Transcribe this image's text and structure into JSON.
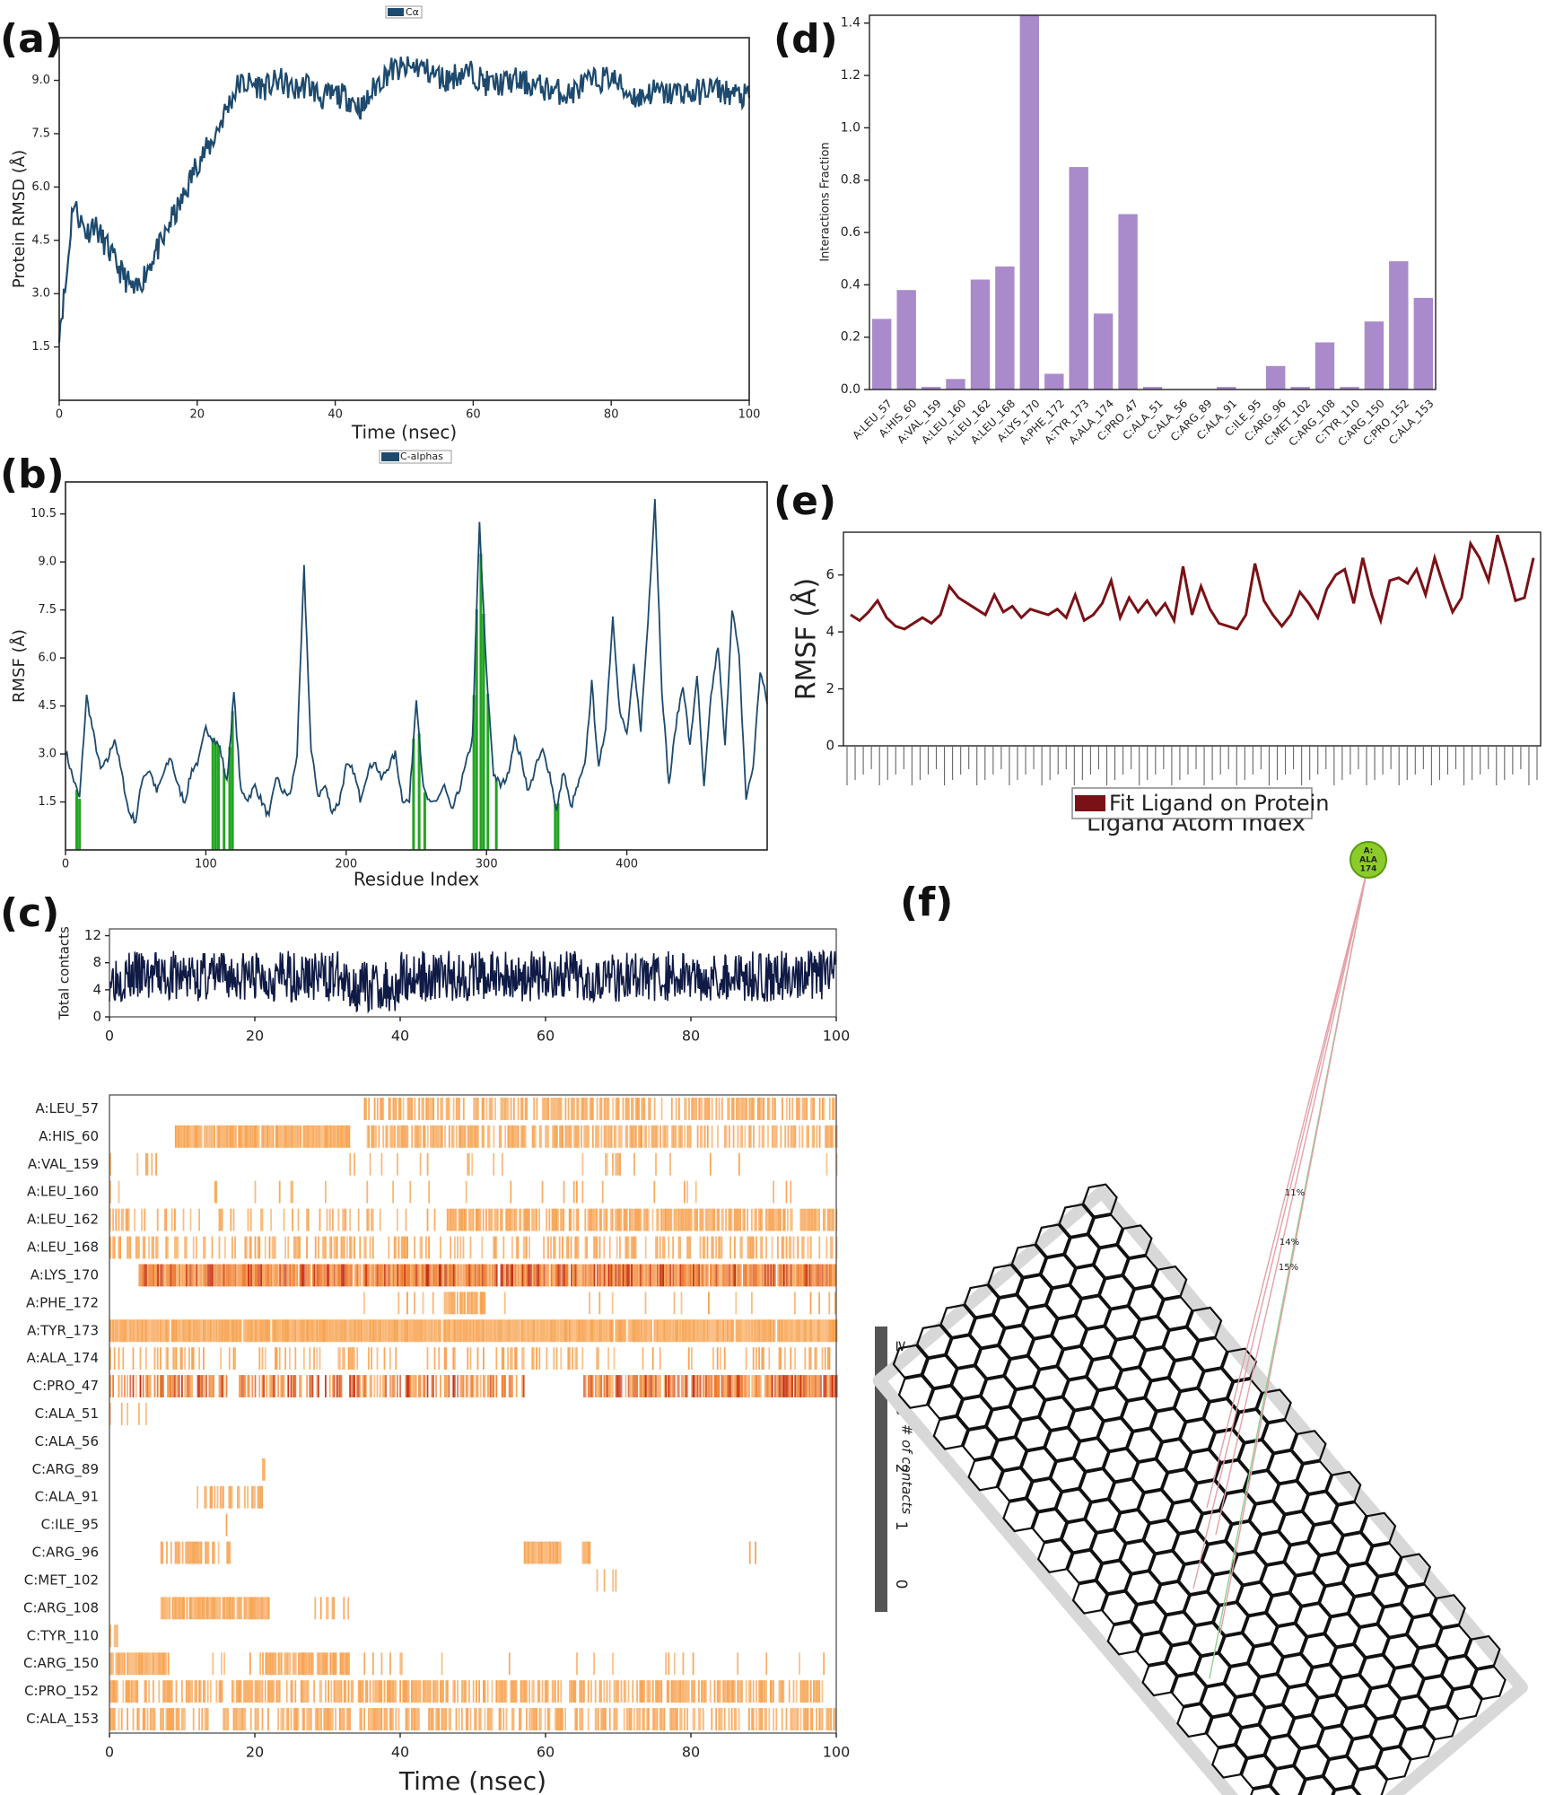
{
  "panels": {
    "a": {
      "label": "(a)"
    },
    "b": {
      "label": "(b)"
    },
    "c": {
      "label": "(c)"
    },
    "d": {
      "label": "(d)"
    },
    "e": {
      "label": "(e)"
    },
    "f": {
      "label": "(f)"
    }
  },
  "chart_data": [
    {
      "id": "a",
      "type": "line",
      "legend": "Cα",
      "xlabel": "Time (nsec)",
      "ylabel": "Protein RMSD (Å)",
      "xlim": [
        0,
        100
      ],
      "ylim": [
        0,
        10.2
      ],
      "xticks": [
        0,
        20,
        40,
        60,
        80,
        100
      ],
      "yticks": [
        1.5,
        3.0,
        4.5,
        6.0,
        7.5,
        9.0
      ],
      "color": "#1d4a6e",
      "x": [
        0,
        1,
        2,
        3,
        4,
        5,
        6,
        7,
        8,
        9,
        10,
        11,
        12,
        13,
        14,
        15,
        16,
        17,
        18,
        19,
        20,
        22,
        24,
        26,
        28,
        30,
        32,
        34,
        36,
        38,
        40,
        42,
        44,
        46,
        48,
        50,
        52,
        54,
        56,
        58,
        60,
        62,
        64,
        66,
        68,
        70,
        72,
        74,
        76,
        78,
        80,
        82,
        84,
        86,
        88,
        90,
        92,
        94,
        96,
        98,
        100
      ],
      "series": [
        {
          "values": [
            2.0,
            3.3,
            5.6,
            5.1,
            4.7,
            5.0,
            4.6,
            4.3,
            3.9,
            3.6,
            3.3,
            3.0,
            3.4,
            3.8,
            4.2,
            4.4,
            5.0,
            5.3,
            5.7,
            6.2,
            6.7,
            7.2,
            8.1,
            8.9,
            8.9,
            8.8,
            9.0,
            8.7,
            8.9,
            8.5,
            8.6,
            8.5,
            8.2,
            8.9,
            9.3,
            9.3,
            9.4,
            9.2,
            9.0,
            9.2,
            9.2,
            8.9,
            8.9,
            9.0,
            8.9,
            8.8,
            8.7,
            8.6,
            8.9,
            9.0,
            9.1,
            8.7,
            8.5,
            8.7,
            8.6,
            8.7,
            8.6,
            8.8,
            8.7,
            8.6,
            8.5
          ]
        }
      ]
    },
    {
      "id": "b",
      "type": "line",
      "legend": "C-alphas",
      "xlabel": "Residue Index",
      "ylabel": "RMSF (Å)",
      "xlim": [
        0,
        500
      ],
      "ylim": [
        0,
        11.5
      ],
      "xticks": [
        0,
        100,
        200,
        300,
        400
      ],
      "yticks": [
        1.5,
        3.0,
        4.5,
        6.0,
        7.5,
        9.0,
        10.5
      ],
      "color": "#1d4a6e",
      "highlight_color": "#22a522",
      "contact_residues": [
        8,
        10,
        105,
        107,
        109,
        113,
        117,
        119,
        248,
        252,
        256,
        291,
        293,
        296,
        298,
        301,
        307,
        349,
        351
      ],
      "x": [
        0,
        5,
        10,
        15,
        20,
        25,
        30,
        35,
        40,
        45,
        50,
        55,
        60,
        65,
        70,
        75,
        80,
        85,
        90,
        95,
        100,
        105,
        110,
        115,
        120,
        125,
        130,
        135,
        140,
        145,
        150,
        155,
        160,
        165,
        170,
        175,
        180,
        185,
        190,
        195,
        200,
        205,
        210,
        215,
        220,
        225,
        230,
        235,
        240,
        245,
        250,
        255,
        260,
        265,
        270,
        275,
        280,
        285,
        290,
        295,
        300,
        305,
        310,
        315,
        320,
        325,
        330,
        335,
        340,
        345,
        350,
        355,
        360,
        365,
        370,
        375,
        380,
        385,
        390,
        395,
        400,
        405,
        410,
        415,
        420,
        425,
        430,
        435,
        440,
        445,
        450,
        455,
        460,
        465,
        470,
        475,
        480,
        485,
        490,
        495,
        500
      ],
      "series": [
        {
          "values": [
            3.1,
            2.3,
            1.6,
            4.8,
            3.6,
            2.5,
            2.8,
            3.5,
            2.4,
            1.2,
            0.9,
            2.3,
            2.5,
            1.8,
            2.4,
            2.9,
            2.0,
            1.5,
            2.5,
            2.8,
            3.8,
            3.5,
            3.2,
            2.1,
            4.9,
            1.8,
            1.6,
            2.0,
            1.5,
            1.0,
            2.3,
            1.8,
            1.7,
            3.0,
            8.8,
            3.1,
            1.7,
            2.0,
            1.2,
            1.5,
            2.6,
            2.5,
            1.6,
            2.4,
            2.8,
            2.2,
            2.6,
            3.0,
            1.6,
            1.5,
            4.8,
            1.9,
            1.4,
            1.6,
            2.0,
            1.2,
            1.8,
            2.6,
            3.5,
            10.2,
            5.5,
            2.4,
            2.0,
            2.3,
            3.5,
            2.8,
            1.8,
            2.6,
            3.1,
            2.4,
            1.2,
            2.5,
            1.3,
            2.0,
            2.6,
            5.2,
            2.5,
            3.9,
            7.3,
            4.3,
            3.6,
            5.7,
            3.8,
            7.1,
            11.0,
            5.0,
            2.0,
            3.9,
            5.2,
            3.2,
            5.5,
            1.9,
            4.8,
            6.4,
            3.2,
            7.6,
            6.0,
            1.6,
            2.6,
            5.6,
            4.6
          ]
        }
      ]
    },
    {
      "id": "c-top",
      "type": "line",
      "ylabel": "Total contacts",
      "xlim": [
        0,
        100
      ],
      "ylim": [
        0,
        13
      ],
      "xticks": [
        0,
        20,
        40,
        60,
        80,
        100
      ],
      "yticks": [
        0,
        4,
        8,
        12
      ],
      "color": "#0f1a45",
      "series": [
        {
          "name": "",
          "values": []
        }
      ]
    },
    {
      "id": "c-heatmap",
      "type": "heatmap",
      "xlabel": "Time (nsec)",
      "xlim": [
        0,
        100
      ],
      "xticks": [
        0,
        20,
        40,
        60,
        80,
        100
      ],
      "colorbar_title": "# of contacts",
      "colorbar_ticks": [
        "0",
        "1",
        "2",
        "3",
        "≥ 4"
      ],
      "colors": {
        "light": "#f7a24f",
        "mid": "#ee7a2b",
        "dark": "#c42a07"
      },
      "rows": [
        {
          "label": "A:LEU_57",
          "segments": [
            [
              0,
              35,
              0.0
            ],
            [
              35,
              100,
              0.55
            ]
          ]
        },
        {
          "label": "A:HIS_60",
          "segments": [
            [
              9,
              33,
              0.95
            ],
            [
              35,
              100,
              0.55
            ]
          ]
        },
        {
          "label": "A:VAL_159",
          "segments": [
            [
              0,
              10,
              0.12
            ],
            [
              33,
              100,
              0.08
            ]
          ]
        },
        {
          "label": "A:LEU_160",
          "segments": [
            [
              0,
              100,
              0.05
            ]
          ]
        },
        {
          "label": "A:LEU_162",
          "segments": [
            [
              0,
              46,
              0.25
            ],
            [
              46,
              100,
              0.75
            ]
          ]
        },
        {
          "label": "A:LEU_168",
          "segments": [
            [
              0,
              100,
              0.4
            ]
          ]
        },
        {
          "label": "A:LYS_170",
          "segments": [
            [
              4,
              100,
              0.95,
              "mid"
            ]
          ]
        },
        {
          "label": "A:PHE_172",
          "segments": [
            [
              46,
              52,
              0.8
            ],
            [
              30,
              100,
              0.08
            ]
          ]
        },
        {
          "label": "A:TYR_173",
          "segments": [
            [
              0,
              100,
              0.97
            ]
          ]
        },
        {
          "label": "A:ALA_174",
          "segments": [
            [
              0,
              100,
              0.22
            ]
          ]
        },
        {
          "label": "C:PRO_47",
          "segments": [
            [
              0,
              57,
              0.6,
              "mid"
            ],
            [
              65,
              100,
              0.85,
              "mid"
            ]
          ]
        },
        {
          "label": "C:ALA_51",
          "segments": [
            [
              0,
              5,
              0.25
            ]
          ]
        },
        {
          "label": "C:ALA_56",
          "segments": []
        },
        {
          "label": "C:ARG_89",
          "segments": [
            [
              21,
              21.5,
              0.5
            ]
          ]
        },
        {
          "label": "C:ALA_91",
          "segments": [
            [
              12,
              22,
              0.35
            ]
          ]
        },
        {
          "label": "C:ILE_95",
          "segments": [
            [
              16,
              17,
              0.3
            ]
          ]
        },
        {
          "label": "C:ARG_96",
          "segments": [
            [
              7,
              17,
              0.55
            ],
            [
              57,
              62,
              0.9
            ],
            [
              65,
              66,
              0.9
            ],
            [
              88,
              89,
              0.5
            ]
          ]
        },
        {
          "label": "C:MET_102",
          "segments": [
            [
              67,
              70,
              0.2
            ]
          ]
        },
        {
          "label": "C:ARG_108",
          "segments": [
            [
              7,
              22,
              0.9
            ],
            [
              28,
              33,
              0.35
            ]
          ]
        },
        {
          "label": "C:TYR_110",
          "segments": [
            [
              0,
              1,
              0.5
            ]
          ]
        },
        {
          "label": "C:ARG_150",
          "segments": [
            [
              0,
              8,
              0.9
            ],
            [
              8,
              28,
              0.15
            ],
            [
              21,
              33,
              0.8
            ],
            [
              33,
              100,
              0.06
            ]
          ]
        },
        {
          "label": "C:PRO_152",
          "segments": [
            [
              0,
              98,
              0.6
            ]
          ]
        },
        {
          "label": "C:ALA_153",
          "segments": [
            [
              0,
              100,
              0.55
            ]
          ]
        }
      ]
    },
    {
      "id": "d",
      "type": "bar",
      "ylabel": "Interactions Fraction",
      "ylim": [
        0,
        1.43
      ],
      "yticks": [
        0.0,
        0.2,
        0.4,
        0.6,
        0.8,
        1.0,
        1.2,
        1.4
      ],
      "color": "#a98acb",
      "categories": [
        "A:LEU_57",
        "A:HIS_60",
        "A:VAL_159",
        "A:LEU_160",
        "A:LEU_162",
        "A:LEU_168",
        "A:LYS_170",
        "A:PHE_172",
        "A:TYR_173",
        "A:ALA_174",
        "C:PRO_47",
        "C:ALA_51",
        "C:ALA_56",
        "C:ARG_89",
        "C:ALA_91",
        "C:ILE_95",
        "C:ARG_96",
        "C:MET_102",
        "C:ARG_108",
        "C:TYR_110",
        "C:ARG_150",
        "C:PRO_152",
        "C:ALA_153"
      ],
      "values": [
        0.27,
        0.38,
        0.01,
        0.04,
        0.42,
        0.47,
        1.43,
        0.06,
        0.85,
        0.29,
        0.67,
        0.01,
        0.0,
        0.0,
        0.01,
        0.0,
        0.09,
        0.01,
        0.18,
        0.01,
        0.26,
        0.49,
        0.35
      ]
    },
    {
      "id": "e",
      "type": "line",
      "ylabel": "RMSF (Å)",
      "xlabel": "Ligand Atom Index",
      "legend": "Fit Ligand on Protein",
      "ylim": [
        0,
        7.5
      ],
      "yticks": [
        0,
        2,
        4,
        6
      ],
      "color": "#7a1116",
      "series": [
        {
          "values": [
            4.6,
            4.4,
            4.7,
            5.1,
            4.5,
            4.2,
            4.1,
            4.3,
            4.5,
            4.3,
            4.6,
            5.6,
            5.2,
            5.0,
            4.8,
            4.6,
            5.3,
            4.7,
            4.9,
            4.5,
            4.8,
            4.7,
            4.6,
            4.8,
            4.5,
            5.3,
            4.4,
            4.6,
            5.0,
            5.8,
            4.5,
            5.2,
            4.7,
            5.1,
            4.6,
            5.0,
            4.4,
            6.3,
            4.6,
            5.6,
            4.8,
            4.3,
            4.2,
            4.1,
            4.6,
            6.4,
            5.1,
            4.6,
            4.2,
            4.6,
            5.4,
            5.0,
            4.5,
            5.5,
            6.0,
            6.2,
            5.0,
            6.6,
            5.3,
            4.4,
            5.8,
            5.9,
            5.7,
            6.2,
            5.3,
            6.6,
            5.6,
            4.7,
            5.2,
            7.1,
            6.6,
            5.8,
            7.4,
            6.3,
            5.1,
            5.2,
            6.6
          ]
        }
      ],
      "x_tick_count": 86
    },
    {
      "id": "f",
      "type": "diagram",
      "residue_label": "A:\nALA\n174",
      "line_percents": [
        "11%",
        "14%",
        "15%"
      ]
    }
  ]
}
